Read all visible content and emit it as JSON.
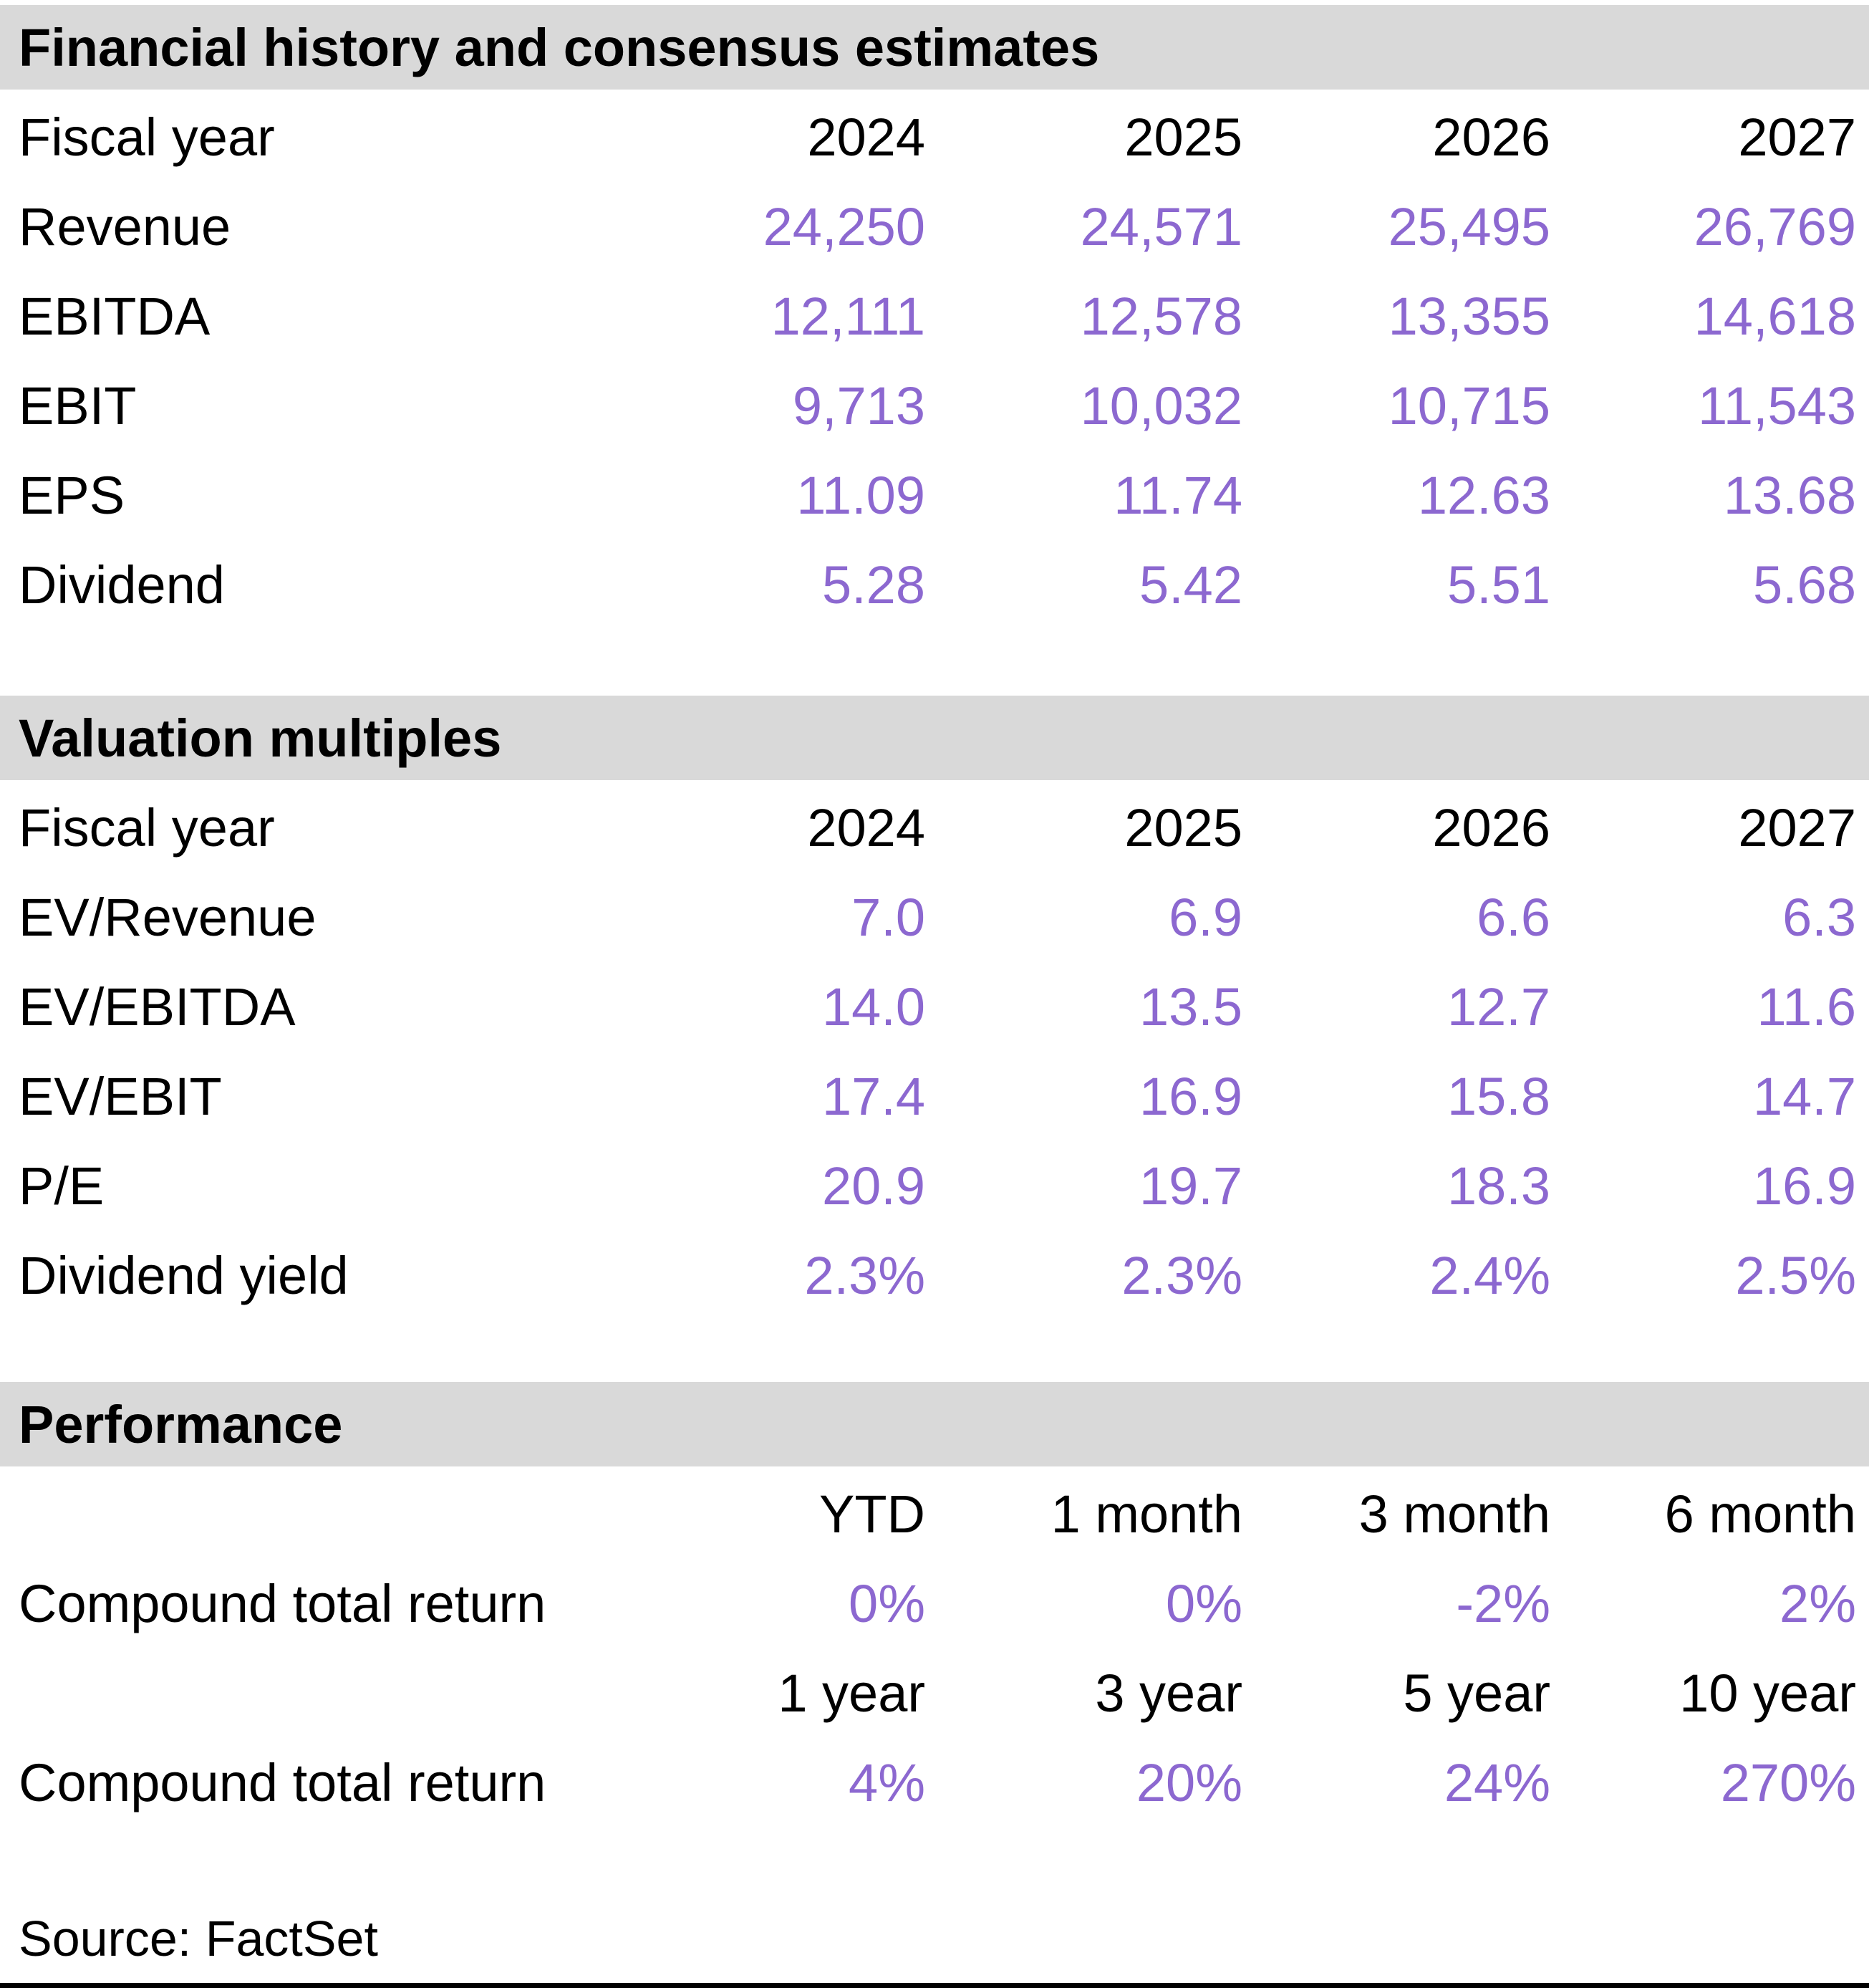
{
  "colors": {
    "accent": "#8C68D0",
    "section_header_bg": "#D9D9D9",
    "text": "#000000"
  },
  "sections": [
    {
      "title": "Financial history and consensus estimates",
      "header_label": "Fiscal year",
      "columns": [
        "2024",
        "2025",
        "2026",
        "2027"
      ],
      "rows": [
        {
          "label": "Revenue",
          "values": [
            "24,250",
            "24,571",
            "25,495",
            "26,769"
          ]
        },
        {
          "label": "EBITDA",
          "values": [
            "12,111",
            "12,578",
            "13,355",
            "14,618"
          ]
        },
        {
          "label": "EBIT",
          "values": [
            "9,713",
            "10,032",
            "10,715",
            "11,543"
          ]
        },
        {
          "label": "EPS",
          "values": [
            "11.09",
            "11.74",
            "12.63",
            "13.68"
          ]
        },
        {
          "label": "Dividend",
          "values": [
            "5.28",
            "5.42",
            "5.51",
            "5.68"
          ]
        }
      ]
    },
    {
      "title": "Valuation multiples",
      "header_label": "Fiscal year",
      "columns": [
        "2024",
        "2025",
        "2026",
        "2027"
      ],
      "rows": [
        {
          "label": "EV/Revenue",
          "values": [
            "7.0",
            "6.9",
            "6.6",
            "6.3"
          ]
        },
        {
          "label": "EV/EBITDA",
          "values": [
            "14.0",
            "13.5",
            "12.7",
            "11.6"
          ]
        },
        {
          "label": "EV/EBIT",
          "values": [
            "17.4",
            "16.9",
            "15.8",
            "14.7"
          ]
        },
        {
          "label": "P/E",
          "values": [
            "20.9",
            "19.7",
            "18.3",
            "16.9"
          ]
        },
        {
          "label": "Dividend yield",
          "values": [
            "2.3%",
            "2.3%",
            "2.4%",
            "2.5%"
          ]
        }
      ]
    },
    {
      "title": "Performance",
      "blocks": [
        {
          "columns": [
            "YTD",
            "1 month",
            "3 month",
            "6 month"
          ],
          "rows": [
            {
              "label": "Compound total return",
              "values": [
                "0%",
                "0%",
                "-2%",
                "2%"
              ]
            }
          ]
        },
        {
          "columns": [
            "1 year",
            "3 year",
            "5 year",
            "10 year"
          ],
          "rows": [
            {
              "label": "Compound total return",
              "values": [
                "4%",
                "20%",
                "24%",
                "270%"
              ]
            }
          ]
        }
      ]
    }
  ],
  "source": "Source: FactSet"
}
